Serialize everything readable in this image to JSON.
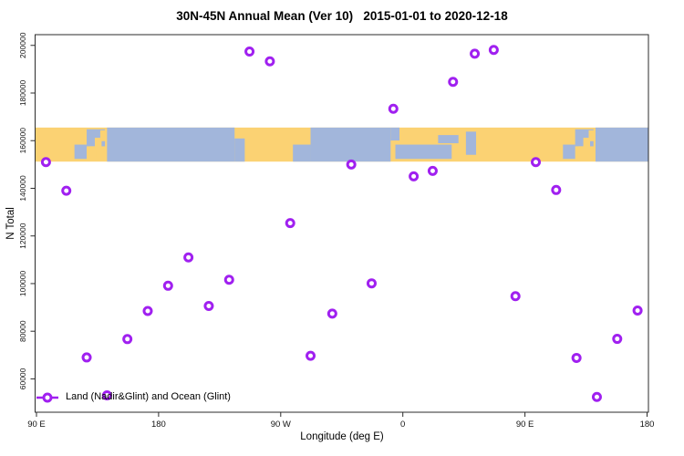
{
  "title": "30N-45N Annual Mean (Ver 10)   2015-01-01 to 2020-12-18",
  "legend": {
    "label": "Land (Nadir&Glint) and Ocean (Glint)"
  },
  "colors": {
    "point": "#A020F0",
    "land": "#FBD273",
    "ocean": "#A2B6DB",
    "axis": "#2b2b2b"
  },
  "chart_data": {
    "type": "scatter",
    "title": "30N-45N Annual Mean (Ver 10)   2015-01-01 to 2020-12-18",
    "xlabel": "Longitude (deg E)",
    "ylabel": "N Total",
    "xlim": [
      89,
      541
    ],
    "ylim": [
      46000,
      204500
    ],
    "grid": false,
    "legend_position": "bottom-left",
    "x_ticks": [
      {
        "v": 90,
        "label": "90 E"
      },
      {
        "v": 180,
        "label": "180"
      },
      {
        "v": 270,
        "label": "90 W"
      },
      {
        "v": 360,
        "label": "0"
      },
      {
        "v": 450,
        "label": "90 E"
      },
      {
        "v": 540,
        "label": "180"
      }
    ],
    "y_ticks": [
      {
        "v": 60000,
        "label": "60000"
      },
      {
        "v": 80000,
        "label": "80000"
      },
      {
        "v": 100000,
        "label": "100000"
      },
      {
        "v": 120000,
        "label": "120000"
      },
      {
        "v": 140000,
        "label": "140000"
      },
      {
        "v": 160000,
        "label": "160000"
      },
      {
        "v": 180000,
        "label": "180000"
      },
      {
        "v": 200000,
        "label": "200000"
      }
    ],
    "points_format": "[longitude_plot_axis_degE_90to540, N_total]",
    "points": [
      [
        97,
        151000
      ],
      [
        112,
        139000
      ],
      [
        127,
        69000
      ],
      [
        142,
        53100
      ],
      [
        157,
        76700
      ],
      [
        172,
        88500
      ],
      [
        187,
        99100
      ],
      [
        202,
        111000
      ],
      [
        217,
        90600
      ],
      [
        232,
        101600
      ],
      [
        247,
        197400
      ],
      [
        262,
        193300
      ],
      [
        277,
        125400
      ],
      [
        292,
        69700
      ],
      [
        308,
        87400
      ],
      [
        322,
        150000
      ],
      [
        337,
        100100
      ],
      [
        353,
        173400
      ],
      [
        368,
        145000
      ],
      [
        382,
        147300
      ],
      [
        397,
        184700
      ],
      [
        413,
        196500
      ],
      [
        427,
        198100
      ],
      [
        443,
        94700
      ],
      [
        458,
        151000
      ],
      [
        473,
        139300
      ],
      [
        488,
        68800
      ],
      [
        503,
        52400
      ],
      [
        518,
        76800
      ],
      [
        533,
        88700
      ]
    ],
    "map_band": {
      "value_top": 165500,
      "value_bottom": 151200,
      "ocean_rects": [
        {
          "from": 142,
          "to": 236,
          "top": 0,
          "bottom": 1
        },
        {
          "from": 236,
          "to": 243.5,
          "top": 0.32,
          "bottom": 1
        },
        {
          "from": 118,
          "to": 127,
          "top": 0.5,
          "bottom": 0.92
        },
        {
          "from": 127,
          "to": 140.5,
          "top": 0.05,
          "bottom": 0.55
        },
        {
          "from": 279,
          "to": 292,
          "top": 0.5,
          "bottom": 1
        },
        {
          "from": 292,
          "to": 351,
          "top": 0,
          "bottom": 1
        },
        {
          "from": 351,
          "to": 357.5,
          "top": 0,
          "bottom": 0.38
        },
        {
          "from": 354.5,
          "to": 396,
          "top": 0.5,
          "bottom": 0.92
        },
        {
          "from": 386,
          "to": 401,
          "top": 0.22,
          "bottom": 0.46
        },
        {
          "from": 406.5,
          "to": 414,
          "top": 0.12,
          "bottom": 0.8
        },
        {
          "from": 478,
          "to": 487,
          "top": 0.5,
          "bottom": 0.92
        },
        {
          "from": 487,
          "to": 500.5,
          "top": 0.05,
          "bottom": 0.55
        },
        {
          "from": 502,
          "to": 541,
          "top": 0,
          "bottom": 1
        }
      ],
      "land_rects": [
        {
          "from": 129,
          "to": 134,
          "top": 0.55,
          "bottom": 0.85
        },
        {
          "from": 133,
          "to": 138,
          "top": 0.3,
          "bottom": 0.62
        },
        {
          "from": 137,
          "to": 141.5,
          "top": 0.08,
          "bottom": 0.4
        },
        {
          "from": 489,
          "to": 494,
          "top": 0.55,
          "bottom": 0.85
        },
        {
          "from": 493,
          "to": 498,
          "top": 0.3,
          "bottom": 0.62
        },
        {
          "from": 497,
          "to": 501.5,
          "top": 0.08,
          "bottom": 0.4
        }
      ]
    }
  }
}
